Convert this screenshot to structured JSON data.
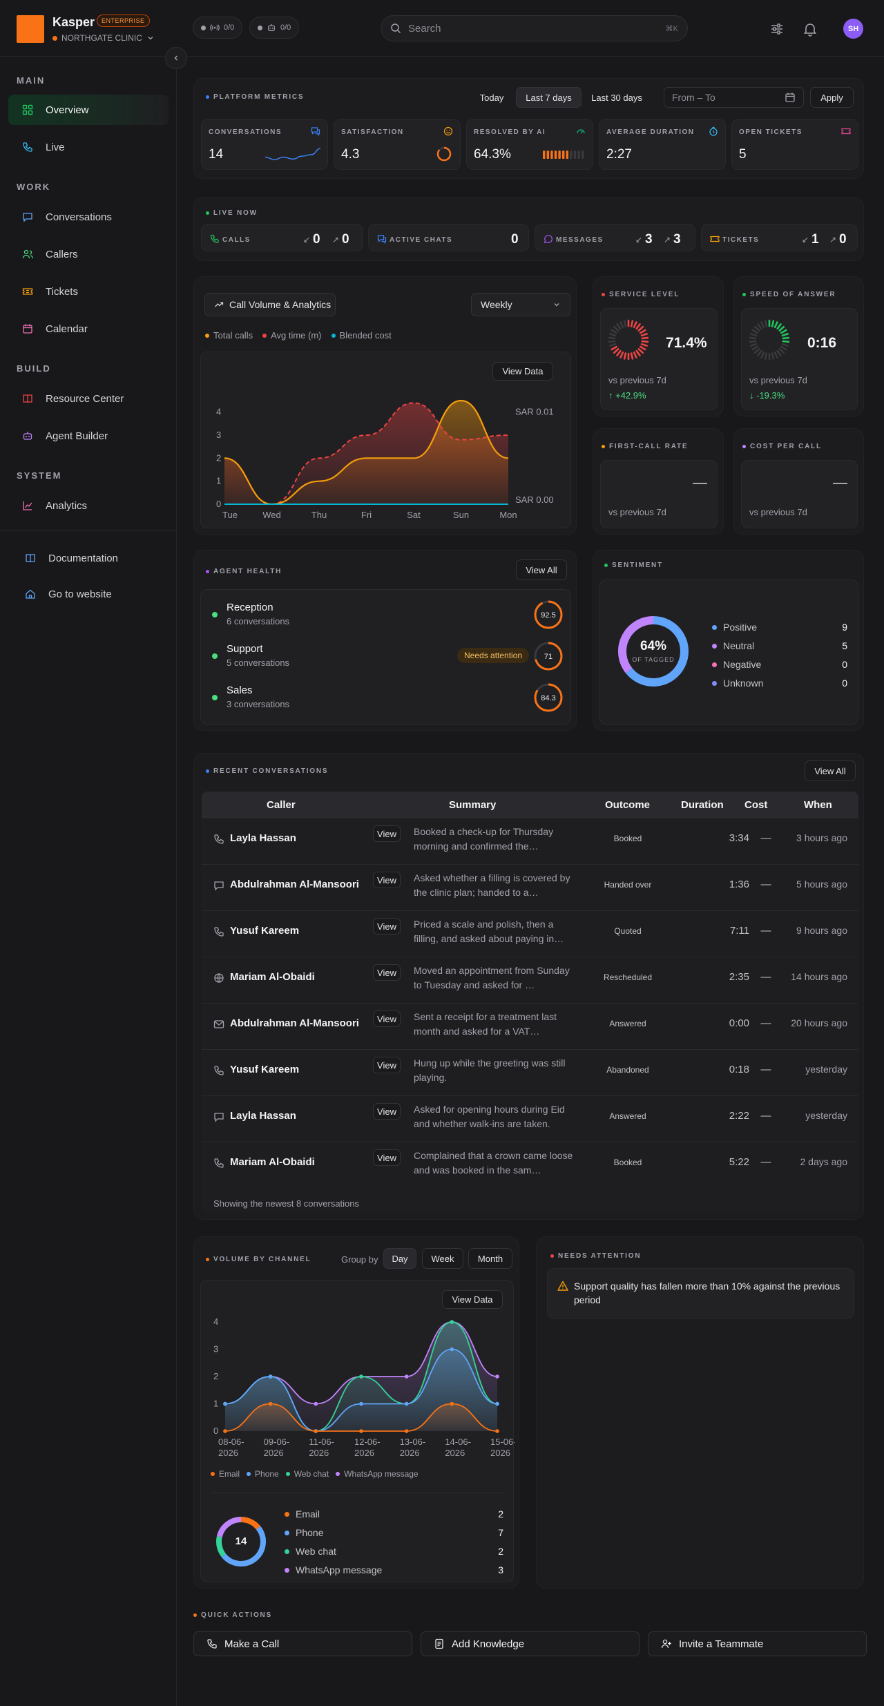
{
  "app": {
    "brand": "Kasper",
    "plan_badge": "ENTERPRISE",
    "org": "NORTHGATE CLINIC"
  },
  "topbar": {
    "pill_a": "0/0",
    "pill_b": "0/0",
    "search_placeholder": "Search",
    "search_shortcut": "⌘K",
    "avatar_initials": "SH",
    "icons": [
      "sliders-icon",
      "bell-icon"
    ]
  },
  "sidebar": {
    "sections": [
      {
        "title": "MAIN",
        "items": [
          {
            "label": "Overview",
            "icon": "grid-icon",
            "color": "#22c55e",
            "active": true
          },
          {
            "label": "Live",
            "icon": "phone-icon",
            "color": "#38bdf8"
          }
        ]
      },
      {
        "title": "WORK",
        "items": [
          {
            "label": "Conversations",
            "icon": "chat-icon",
            "color": "#60a5fa"
          },
          {
            "label": "Callers",
            "icon": "users-icon",
            "color": "#4ade80"
          },
          {
            "label": "Tickets",
            "icon": "ticket-icon",
            "color": "#f59e0b"
          },
          {
            "label": "Calendar",
            "icon": "calendar-icon",
            "color": "#f472b6"
          }
        ]
      },
      {
        "title": "BUILD",
        "items": [
          {
            "label": "Resource Center",
            "icon": "book-icon",
            "color": "#ef4444"
          },
          {
            "label": "Agent Builder",
            "icon": "bot-icon",
            "color": "#c084fc"
          }
        ]
      },
      {
        "title": "SYSTEM",
        "items": [
          {
            "label": "Analytics",
            "icon": "chart-icon",
            "color": "#f472b6"
          }
        ]
      }
    ],
    "footer": [
      {
        "label": "Documentation",
        "icon": "book-open-icon",
        "color": "#60a5fa"
      },
      {
        "label": "Go to website",
        "icon": "home-icon",
        "color": "#60a5fa"
      }
    ]
  },
  "platform_metrics": {
    "title": "PLATFORM METRICS",
    "ranges": [
      "Today",
      "Last 7 days",
      "Last 30 days"
    ],
    "selected_range": "Last 7 days",
    "date_placeholder": "From – To",
    "apply": "Apply",
    "metrics": [
      {
        "label": "CONVERSATIONS",
        "value": "14",
        "icon": "chat-icon",
        "color": "#3b82f6"
      },
      {
        "label": "SATISFACTION",
        "value": "4.3",
        "icon": "smile-icon",
        "color": "#f59e0b"
      },
      {
        "label": "RESOLVED BY AI",
        "value": "64.3%",
        "icon": "gauge-icon",
        "color": "#10b981",
        "fraction": 0.643
      },
      {
        "label": "AVERAGE DURATION",
        "value": "2:27",
        "icon": "timer-icon",
        "color": "#38bdf8"
      },
      {
        "label": "OPEN TICKETS",
        "value": "5",
        "icon": "ticket-icon",
        "color": "#ec4899"
      }
    ],
    "satisfaction_fraction": 0.86,
    "spark": [
      2,
      1.5,
      2,
      1.6,
      2.2,
      2.5,
      3.8
    ]
  },
  "live_now": {
    "title": "LIVE NOW",
    "items": [
      {
        "label": "CALLS",
        "in": "0",
        "out": "0",
        "icon": "phone-icon",
        "color": "#22c55e"
      },
      {
        "label": "ACTIVE CHATS",
        "value": "0",
        "icon": "chat-icon",
        "color": "#3b82f6"
      },
      {
        "label": "MESSAGES",
        "in": "3",
        "out": "3",
        "icon": "message-icon",
        "color": "#a855f7"
      },
      {
        "label": "TICKETS",
        "in": "1",
        "out": "0",
        "icon": "ticket-icon",
        "color": "#f59e0b"
      }
    ]
  },
  "call_volume": {
    "tab": "Call Volume & Analytics",
    "period": "Weekly",
    "view_data": "View Data",
    "legend": [
      {
        "name": "Total calls",
        "color": "#f59e0b"
      },
      {
        "name": "Avg time (m)",
        "color": "#ef4444"
      },
      {
        "name": "Blended cost",
        "color": "#06b6d4"
      }
    ]
  },
  "chart_data": [
    {
      "type": "area",
      "categories": [
        "Tue",
        "Wed",
        "Thu",
        "Fri",
        "Sat",
        "Sun",
        "Mon"
      ],
      "series": [
        {
          "name": "Total calls",
          "values": [
            2,
            0,
            1,
            2,
            2,
            4.5,
            2
          ]
        },
        {
          "name": "Avg time (m)",
          "values": [
            2,
            0,
            2,
            3,
            4.4,
            2.8,
            3
          ]
        },
        {
          "name": "Blended cost",
          "values": [
            0,
            0,
            0,
            0,
            0,
            0,
            0
          ]
        }
      ],
      "y_ticks": [
        "0",
        "1",
        "2",
        "3",
        "4"
      ],
      "y2_ticks": [
        "SAR 0.00",
        "SAR 0.01"
      ],
      "ylim": [
        0,
        4.5
      ]
    },
    {
      "type": "area",
      "title": "VOLUME BY CHANNEL",
      "categories": [
        "08-06-2026",
        "09-06-2026",
        "11-06-2026",
        "12-06-2026",
        "13-06-2026",
        "14-06-2026",
        "15-06-2026"
      ],
      "series": [
        {
          "name": "Email",
          "values": [
            0,
            1,
            0,
            0,
            0,
            1,
            0
          ]
        },
        {
          "name": "Phone",
          "values": [
            1,
            2,
            0,
            1,
            1,
            3,
            1
          ]
        },
        {
          "name": "Web chat",
          "values": [
            1,
            2,
            0,
            2,
            1,
            4,
            1
          ]
        },
        {
          "name": "WhatsApp message",
          "values": [
            1,
            2,
            1,
            2,
            2,
            4,
            2
          ]
        }
      ],
      "y_ticks": [
        "0",
        "1",
        "2",
        "3",
        "4"
      ],
      "ylim": [
        0,
        4
      ]
    },
    {
      "type": "pie",
      "title": "SENTIMENT",
      "categories": [
        "Positive",
        "Neutral",
        "Negative",
        "Unknown"
      ],
      "values": [
        9,
        5,
        0,
        0
      ],
      "center_value": "64%",
      "center_label": "OF TAGGED"
    },
    {
      "type": "pie",
      "categories": [
        "Email",
        "Phone",
        "Web chat",
        "WhatsApp message"
      ],
      "values": [
        2,
        7,
        2,
        3
      ],
      "center_value": "14"
    }
  ],
  "kpis": [
    {
      "title": "SERVICE LEVEL",
      "value": "71.4%",
      "dot": "#ef4444",
      "ring": "#ef4444",
      "fraction": 0.714,
      "compare": "vs previous 7d",
      "delta": "+42.9%",
      "delta_up": true
    },
    {
      "title": "SPEED OF ANSWER",
      "value": "0:16",
      "dot": "#22c55e",
      "ring": "#22c55e",
      "fraction": 0.3,
      "compare": "vs previous 7d",
      "delta": "-19.3%",
      "delta_up": false
    },
    {
      "title": "FIRST-CALL RATE",
      "value": "—",
      "dot": "#f59e0b",
      "compare": "vs previous 7d"
    },
    {
      "title": "COST PER CALL",
      "value": "—",
      "dot": "#c084fc",
      "compare": "vs previous 7d"
    }
  ],
  "agent_health": {
    "title": "AGENT HEALTH",
    "view_all": "View All",
    "agents": [
      {
        "name": "Reception",
        "convs": "6 conversations",
        "score": "92.5",
        "fraction": 0.925
      },
      {
        "name": "Support",
        "convs": "5 conversations",
        "score": "71",
        "fraction": 0.71,
        "flag": "Needs attention"
      },
      {
        "name": "Sales",
        "convs": "3 conversations",
        "score": "84.3",
        "fraction": 0.843
      }
    ]
  },
  "sentiment": {
    "title": "SENTIMENT",
    "items": [
      {
        "label": "Positive",
        "count": "9",
        "color": "#60a5fa"
      },
      {
        "label": "Neutral",
        "count": "5",
        "color": "#c084fc"
      },
      {
        "label": "Negative",
        "count": "0",
        "color": "#f472b6"
      },
      {
        "label": "Unknown",
        "count": "0",
        "color": "#818cf8"
      }
    ]
  },
  "recent": {
    "title": "RECENT CONVERSATIONS",
    "view_all": "View All",
    "columns": [
      "Caller",
      "Summary",
      "Outcome",
      "Duration",
      "Cost",
      "When"
    ],
    "view_label": "View",
    "footer": "Showing the newest 8 conversations",
    "rows": [
      {
        "caller": "Layla Hassan",
        "icon": "phone-icon",
        "summary": "Booked a check-up for Thursday morning and confirmed the…",
        "outcome": "Booked",
        "duration": "3:34",
        "cost": "—",
        "when": "3 hours ago"
      },
      {
        "caller": "Abdulrahman Al-Mansoori",
        "icon": "chat-icon",
        "summary": "Asked whether a filling is covered by the clinic plan; handed to a…",
        "outcome": "Handed over",
        "duration": "1:36",
        "cost": "—",
        "when": "5 hours ago"
      },
      {
        "caller": "Yusuf Kareem",
        "icon": "phone-icon",
        "summary": "Priced a scale and polish, then a filling, and asked about paying in…",
        "outcome": "Quoted",
        "duration": "7:11",
        "cost": "—",
        "when": "9 hours ago"
      },
      {
        "caller": "Mariam Al-Obaidi",
        "icon": "globe-icon",
        "summary": "Moved an appointment from Sunday to Tuesday and asked for …",
        "outcome": "Rescheduled",
        "duration": "2:35",
        "cost": "—",
        "when": "14 hours ago"
      },
      {
        "caller": "Abdulrahman Al-Mansoori",
        "icon": "mail-icon",
        "summary": "Sent a receipt for a treatment last month and asked for a VAT…",
        "outcome": "Answered",
        "duration": "0:00",
        "cost": "—",
        "when": "20 hours ago"
      },
      {
        "caller": "Yusuf Kareem",
        "icon": "phone-icon",
        "summary": "Hung up while the greeting was still playing.",
        "outcome": "Abandoned",
        "duration": "0:18",
        "cost": "—",
        "when": "yesterday"
      },
      {
        "caller": "Layla Hassan",
        "icon": "chat-icon",
        "summary": "Asked for opening hours during Eid and whether walk-ins are taken.",
        "outcome": "Answered",
        "duration": "2:22",
        "cost": "—",
        "when": "yesterday"
      },
      {
        "caller": "Mariam Al-Obaidi",
        "icon": "phone-icon",
        "summary": "Complained that a crown came loose and was booked in the sam…",
        "outcome": "Booked",
        "duration": "5:22",
        "cost": "—",
        "when": "2 days ago"
      }
    ]
  },
  "channel": {
    "title": "VOLUME BY CHANNEL",
    "group_by": "Group by",
    "groups": [
      "Day",
      "Week",
      "Month"
    ],
    "selected": "Day",
    "view_data": "View Data",
    "legend": [
      {
        "name": "Email",
        "color": "#f97316"
      },
      {
        "name": "Phone",
        "color": "#60a5fa"
      },
      {
        "name": "Web chat",
        "color": "#34d399"
      },
      {
        "name": "WhatsApp message",
        "color": "#c084fc"
      }
    ],
    "totals": [
      {
        "name": "Email",
        "count": "2",
        "color": "#f97316"
      },
      {
        "name": "Phone",
        "count": "7",
        "color": "#60a5fa"
      },
      {
        "name": "Web chat",
        "count": "2",
        "color": "#34d399"
      },
      {
        "name": "WhatsApp message",
        "count": "3",
        "color": "#c084fc"
      }
    ]
  },
  "needs_attention": {
    "title": "NEEDS ATTENTION",
    "message": "Support quality has fallen more than 10% against the previous period"
  },
  "quick_actions": {
    "title": "QUICK ACTIONS",
    "items": [
      {
        "label": "Make a Call",
        "icon": "phone-icon"
      },
      {
        "label": "Add Knowledge",
        "icon": "doc-icon"
      },
      {
        "label": "Invite a Teammate",
        "icon": "user-plus-icon"
      }
    ]
  }
}
